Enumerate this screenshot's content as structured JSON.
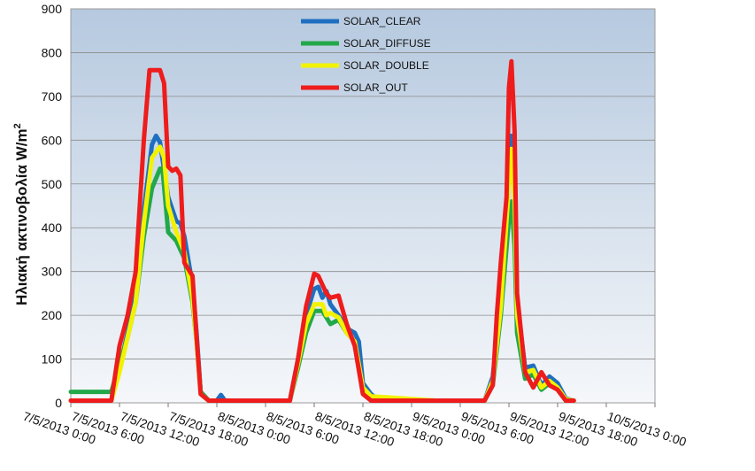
{
  "chart_data": {
    "type": "line",
    "title": "",
    "xlabel": "",
    "ylabel": "Ηλιακή ακτινοβολία W/m",
    "ylabel_sup": "2",
    "ylim": [
      0,
      900
    ],
    "yticks": [
      0,
      100,
      200,
      300,
      400,
      500,
      600,
      700,
      800,
      900
    ],
    "xlim": [
      0,
      72
    ],
    "xticks": [
      {
        "x": 0,
        "label": "7/5/2013 0:00"
      },
      {
        "x": 6,
        "label": "7/5/2013 6:00"
      },
      {
        "x": 12,
        "label": "7/5/2013 12:00"
      },
      {
        "x": 18,
        "label": "7/5/2013 18:00"
      },
      {
        "x": 24,
        "label": "8/5/2013 0:00"
      },
      {
        "x": 30,
        "label": "8/5/2013 6:00"
      },
      {
        "x": 36,
        "label": "8/5/2013 12:00"
      },
      {
        "x": 42,
        "label": "8/5/2013 18:00"
      },
      {
        "x": 48,
        "label": "9/5/2013 0:00"
      },
      {
        "x": 54,
        "label": "9/5/2013 6:00"
      },
      {
        "x": 60,
        "label": "9/5/2013 12:00"
      },
      {
        "x": 66,
        "label": "9/5/2013 18:00"
      },
      {
        "x": 72,
        "label": "10/5/2013 0:00"
      }
    ],
    "grid": true,
    "legend_position": "top-center",
    "series": [
      {
        "name": "SOLAR_CLEAR",
        "color": "#1f6fc0",
        "points": [
          [
            0,
            5
          ],
          [
            3,
            5
          ],
          [
            5,
            5
          ],
          [
            6,
            80
          ],
          [
            7,
            160
          ],
          [
            8,
            260
          ],
          [
            9,
            440
          ],
          [
            10,
            590
          ],
          [
            10.5,
            610
          ],
          [
            11,
            595
          ],
          [
            12,
            470
          ],
          [
            13,
            415
          ],
          [
            13.5,
            410
          ],
          [
            14,
            380
          ],
          [
            15,
            270
          ],
          [
            15.5,
            160
          ],
          [
            16,
            25
          ],
          [
            17,
            5
          ],
          [
            18,
            5
          ],
          [
            18.5,
            18
          ],
          [
            19,
            5
          ],
          [
            24,
            5
          ],
          [
            27,
            5
          ],
          [
            28,
            100
          ],
          [
            29,
            200
          ],
          [
            30,
            260
          ],
          [
            30.5,
            265
          ],
          [
            31,
            240
          ],
          [
            31.5,
            255
          ],
          [
            32,
            225
          ],
          [
            33,
            200
          ],
          [
            34,
            170
          ],
          [
            35,
            160
          ],
          [
            35.5,
            140
          ],
          [
            36,
            45
          ],
          [
            37,
            20
          ],
          [
            38,
            5
          ],
          [
            45,
            5
          ],
          [
            48,
            5
          ],
          [
            51,
            5
          ],
          [
            52,
            60
          ],
          [
            53,
            230
          ],
          [
            54,
            520
          ],
          [
            54.3,
            610
          ],
          [
            54.7,
            500
          ],
          [
            55,
            230
          ],
          [
            56,
            80
          ],
          [
            57,
            85
          ],
          [
            58,
            40
          ],
          [
            59,
            60
          ],
          [
            60,
            45
          ],
          [
            61,
            10
          ],
          [
            62,
            5
          ]
        ]
      },
      {
        "name": "SOLAR_DIFFUSE",
        "color": "#22a84a",
        "points": [
          [
            0,
            25
          ],
          [
            4,
            25
          ],
          [
            5,
            25
          ],
          [
            6,
            90
          ],
          [
            7,
            150
          ],
          [
            8,
            230
          ],
          [
            9,
            380
          ],
          [
            10,
            490
          ],
          [
            11,
            535
          ],
          [
            11.3,
            535
          ],
          [
            12,
            390
          ],
          [
            13,
            370
          ],
          [
            14,
            330
          ],
          [
            15,
            230
          ],
          [
            15.5,
            140
          ],
          [
            16,
            25
          ],
          [
            17,
            5
          ],
          [
            24,
            5
          ],
          [
            27,
            5
          ],
          [
            28,
            80
          ],
          [
            29,
            160
          ],
          [
            30,
            210
          ],
          [
            31,
            210
          ],
          [
            32,
            180
          ],
          [
            33,
            190
          ],
          [
            34,
            160
          ],
          [
            35,
            140
          ],
          [
            36,
            30
          ],
          [
            37,
            10
          ],
          [
            45,
            5
          ],
          [
            48,
            5
          ],
          [
            51,
            5
          ],
          [
            52,
            40
          ],
          [
            53,
            200
          ],
          [
            54,
            420
          ],
          [
            54.3,
            460
          ],
          [
            54.7,
            360
          ],
          [
            55,
            160
          ],
          [
            56,
            55
          ],
          [
            57,
            65
          ],
          [
            58,
            30
          ],
          [
            59,
            45
          ],
          [
            60,
            30
          ],
          [
            61,
            5
          ],
          [
            62,
            5
          ]
        ]
      },
      {
        "name": "SOLAR_DOUBLE",
        "color": "#f2f200",
        "points": [
          [
            0,
            5
          ],
          [
            3,
            5
          ],
          [
            5,
            5
          ],
          [
            6,
            70
          ],
          [
            7,
            150
          ],
          [
            8,
            230
          ],
          [
            9,
            410
          ],
          [
            10,
            560
          ],
          [
            11,
            585
          ],
          [
            11.5,
            560
          ],
          [
            12,
            450
          ],
          [
            13,
            390
          ],
          [
            14,
            345
          ],
          [
            15,
            240
          ],
          [
            15.5,
            140
          ],
          [
            16,
            20
          ],
          [
            17,
            5
          ],
          [
            24,
            5
          ],
          [
            27,
            5
          ],
          [
            28,
            90
          ],
          [
            29,
            180
          ],
          [
            30,
            225
          ],
          [
            31,
            225
          ],
          [
            31.5,
            200
          ],
          [
            32,
            205
          ],
          [
            33,
            195
          ],
          [
            34,
            160
          ],
          [
            35,
            140
          ],
          [
            36,
            35
          ],
          [
            37,
            15
          ],
          [
            45,
            5
          ],
          [
            48,
            5
          ],
          [
            51,
            5
          ],
          [
            52,
            50
          ],
          [
            53,
            220
          ],
          [
            54,
            500
          ],
          [
            54.3,
            580
          ],
          [
            54.7,
            470
          ],
          [
            55,
            200
          ],
          [
            56,
            70
          ],
          [
            57,
            75
          ],
          [
            58,
            35
          ],
          [
            59,
            50
          ],
          [
            60,
            35
          ],
          [
            61,
            8
          ],
          [
            62,
            5
          ]
        ]
      },
      {
        "name": "SOLAR_OUT",
        "color": "#ee1c1c",
        "points": [
          [
            0,
            5
          ],
          [
            3,
            5
          ],
          [
            5,
            5
          ],
          [
            6,
            130
          ],
          [
            7,
            200
          ],
          [
            8,
            300
          ],
          [
            9,
            600
          ],
          [
            9.7,
            760
          ],
          [
            11,
            760
          ],
          [
            11.5,
            730
          ],
          [
            12,
            540
          ],
          [
            12.5,
            530
          ],
          [
            13,
            535
          ],
          [
            13.5,
            520
          ],
          [
            14,
            320
          ],
          [
            15,
            290
          ],
          [
            15.5,
            150
          ],
          [
            16,
            20
          ],
          [
            17,
            5
          ],
          [
            24,
            5
          ],
          [
            27,
            5
          ],
          [
            28,
            100
          ],
          [
            29,
            220
          ],
          [
            30,
            295
          ],
          [
            30.5,
            290
          ],
          [
            31,
            270
          ],
          [
            31.5,
            250
          ],
          [
            32,
            240
          ],
          [
            33,
            245
          ],
          [
            34,
            180
          ],
          [
            35,
            130
          ],
          [
            36,
            20
          ],
          [
            37,
            5
          ],
          [
            45,
            5
          ],
          [
            48,
            5
          ],
          [
            51,
            5
          ],
          [
            52,
            40
          ],
          [
            52.5,
            200
          ],
          [
            53,
            320
          ],
          [
            53.7,
            470
          ],
          [
            54,
            720
          ],
          [
            54.3,
            780
          ],
          [
            54.7,
            620
          ],
          [
            55,
            250
          ],
          [
            56,
            70
          ],
          [
            57,
            35
          ],
          [
            58,
            70
          ],
          [
            59,
            40
          ],
          [
            60,
            30
          ],
          [
            61,
            5
          ],
          [
            62,
            5
          ]
        ]
      }
    ]
  }
}
